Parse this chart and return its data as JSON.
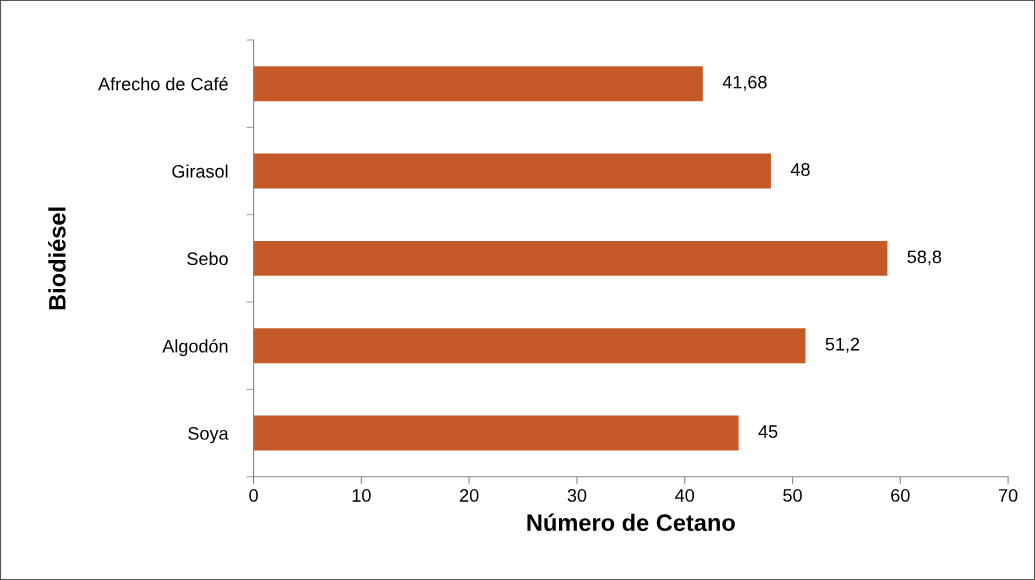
{
  "chart_data": {
    "type": "bar",
    "orientation": "horizontal",
    "xlabel": "Número de Cetano",
    "ylabel": "Biodiésel",
    "categories": [
      "Afrecho de Café",
      "Girasol",
      "Sebo",
      "Algodón",
      "Soya"
    ],
    "values": [
      41.68,
      48,
      58.8,
      51.2,
      45
    ],
    "value_labels": [
      "41,68",
      "48",
      "58,8",
      "51,2",
      "45"
    ],
    "color": "#c55a28",
    "xlim": [
      0,
      70
    ],
    "xticks": [
      0,
      10,
      20,
      30,
      40,
      50,
      60,
      70
    ],
    "grid": false,
    "legend": false
  }
}
